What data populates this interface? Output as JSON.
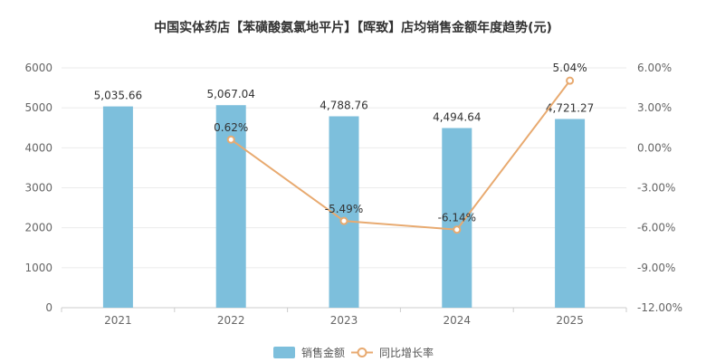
{
  "chart_data": {
    "type": "bar",
    "title": "中国实体药店【苯磺酸氨氯地平片】【晖致】店均销售金额年度趋势(元)",
    "categories": [
      "2021",
      "2022",
      "2023",
      "2024",
      "2025"
    ],
    "series": [
      {
        "name": "销售金额",
        "type": "bar",
        "axis": "left",
        "values": [
          5035.66,
          5067.04,
          4788.76,
          4494.64,
          4721.27
        ],
        "labels": [
          "5,035.66",
          "5,067.04",
          "4,788.76",
          "4,494.64",
          "4,721.27"
        ],
        "color": "#7dbfdc"
      },
      {
        "name": "同比增长率",
        "type": "line",
        "axis": "right",
        "values": [
          null,
          0.62,
          -5.49,
          -6.14,
          5.04
        ],
        "labels": [
          "",
          "0.62%",
          "-5.49%",
          "-6.14%",
          "5.04%"
        ],
        "color": "#e8aa70"
      }
    ],
    "y_left": {
      "range": [
        0,
        6000
      ],
      "ticks": [
        "0",
        "1000",
        "2000",
        "3000",
        "4000",
        "5000",
        "6000"
      ]
    },
    "y_right": {
      "range": [
        -12,
        6
      ],
      "ticks": [
        "-12.00%",
        "-9.00%",
        "-6.00%",
        "-3.00%",
        "0.00%",
        "3.00%",
        "6.00%"
      ]
    },
    "grid": true,
    "legend": "bottom-center"
  }
}
